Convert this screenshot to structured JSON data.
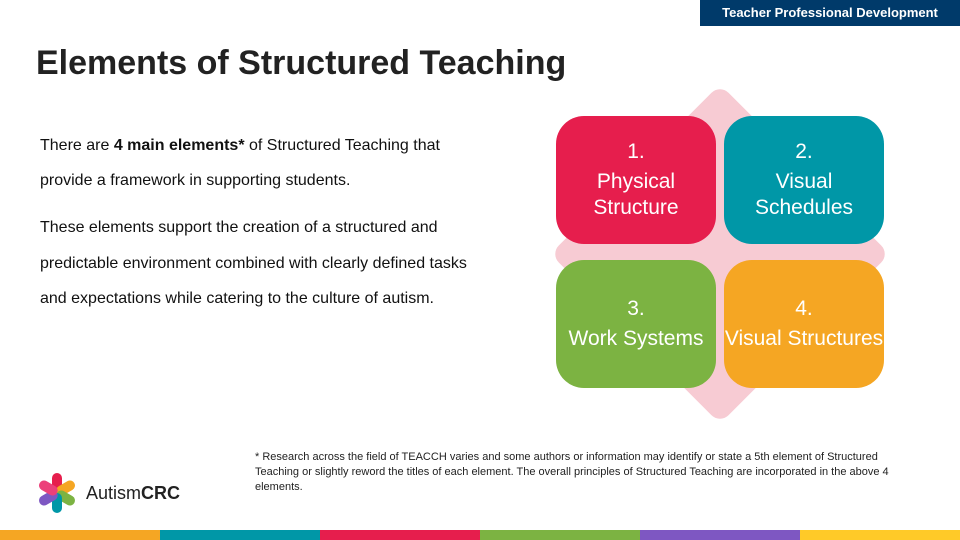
{
  "header": {
    "label": "Teacher Professional Development"
  },
  "title": "Elements of Structured Teaching",
  "paragraph1_pre": "There are ",
  "paragraph1_bold": "4 main elements*",
  "paragraph1_post": " of Structured Teaching that provide a framework in supporting students.",
  "paragraph2": "These elements support the creation of a structured and predictable environment combined with clearly defined tasks and expectations while catering to the culture of autism.",
  "quadrants": [
    {
      "num": "1.",
      "label": "Physical Structure",
      "color": "#e61e4d"
    },
    {
      "num": "2.",
      "label": "Visual Schedules",
      "color": "#0097a7"
    },
    {
      "num": "3.",
      "label": "Work Systems",
      "color": "#7cb342"
    },
    {
      "num": "4.",
      "label": "Visual Structures",
      "color": "#f5a623"
    }
  ],
  "diamond_color": "#f7cbd3",
  "footnote": "* Research across the field of TEACCH varies and some authors or information may identify or state a 5th element of Structured Teaching or slightly reword the titles of each element. The overall principles of Structured Teaching are incorporated in the above 4 elements.",
  "logo": {
    "text_pre": "Autism",
    "text_bold": "CRC",
    "petal_colors": [
      "#e61e4d",
      "#f5a623",
      "#7cb342",
      "#0097a7",
      "#7e57c2",
      "#ec407a"
    ]
  },
  "stripe_colors": [
    "#f5a623",
    "#0097a7",
    "#e61e4d",
    "#7cb342",
    "#7e57c2",
    "#ffca28"
  ]
}
